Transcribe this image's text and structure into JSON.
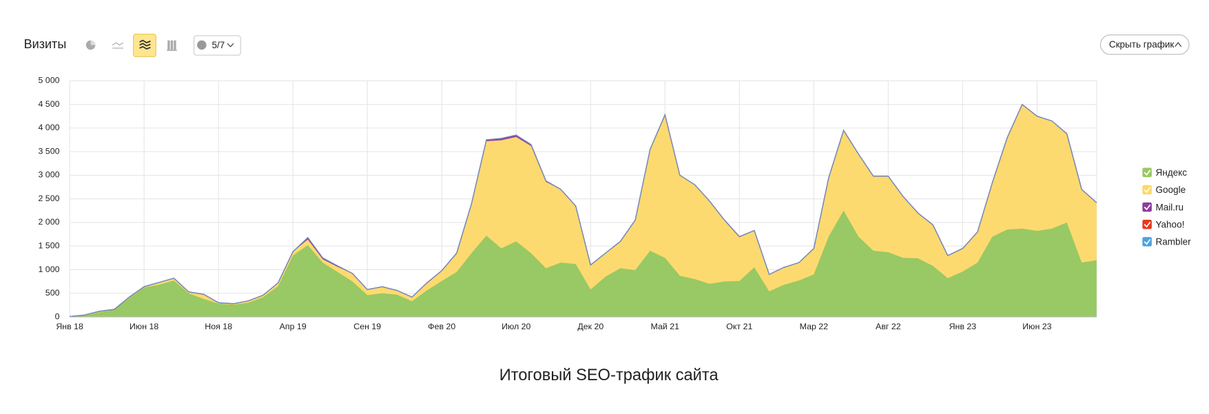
{
  "toolbar": {
    "title": "Визиты",
    "annotations": "5/7",
    "hide_button": "Скрыть график"
  },
  "caption": "Итоговый SEO-трафик сайта",
  "chart_data": {
    "type": "stacked_area",
    "categories": [
      "Янв 18",
      null,
      null,
      null,
      null,
      "Июн 18",
      null,
      null,
      null,
      null,
      "Ноя 18",
      null,
      null,
      null,
      null,
      "Апр 19",
      null,
      null,
      null,
      null,
      "Сен 19",
      null,
      null,
      null,
      null,
      "Фев 20",
      null,
      null,
      null,
      null,
      "Июл 20",
      null,
      null,
      null,
      null,
      "Дек 20",
      null,
      null,
      null,
      null,
      "Май 21",
      null,
      null,
      null,
      null,
      "Окт 21",
      null,
      null,
      null,
      null,
      "Мар 22",
      null,
      null,
      null,
      null,
      "Авг 22",
      null,
      null,
      null,
      null,
      "Янв 23",
      null,
      null,
      null,
      null,
      "Июн 23",
      null,
      null,
      null,
      null
    ],
    "series": [
      {
        "name": "Яндекс",
        "color": "#98c964",
        "values": [
          10,
          30,
          100,
          150,
          400,
          620,
          680,
          770,
          500,
          380,
          280,
          260,
          300,
          420,
          650,
          1300,
          1520,
          1150,
          950,
          750,
          460,
          500,
          470,
          330,
          560,
          760,
          950,
          1350,
          1720,
          1450,
          1600,
          1350,
          1030,
          1150,
          1120,
          580,
          850,
          1030,
          990,
          1400,
          1250,
          870,
          800,
          700,
          750,
          760,
          1050,
          540,
          680,
          770,
          900,
          1700,
          2250,
          1700,
          1400,
          1370,
          1250,
          1240,
          1080,
          820,
          960,
          1150,
          1700,
          1850,
          1870,
          1820,
          1870,
          2000,
          1150,
          1200
        ]
      },
      {
        "name": "Google",
        "color": "#fdd868",
        "values": [
          0,
          10,
          20,
          10,
          20,
          20,
          50,
          50,
          30,
          100,
          20,
          20,
          40,
          40,
          70,
          80,
          120,
          70,
          110,
          170,
          120,
          140,
          90,
          90,
          160,
          220,
          400,
          1050,
          2000,
          2290,
          2210,
          2270,
          1830,
          1550,
          1230,
          520,
          500,
          570,
          1060,
          2150,
          3010,
          2130,
          2000,
          1750,
          1300,
          940,
          780,
          360,
          370,
          380,
          550,
          1250,
          1700,
          1750,
          1580,
          1610,
          1300,
          960,
          870,
          480,
          490,
          650,
          1150,
          1950,
          2630,
          2430,
          2280,
          1880,
          1550,
          1220
        ]
      },
      {
        "name": "Mail.ru",
        "color": "#8e3a9e",
        "values": [
          0,
          0,
          0,
          0,
          0,
          0,
          0,
          0,
          0,
          0,
          0,
          0,
          0,
          0,
          0,
          0,
          40,
          30,
          20,
          0,
          0,
          0,
          0,
          0,
          0,
          0,
          0,
          0,
          30,
          40,
          40,
          30,
          20,
          0,
          0,
          0,
          0,
          0,
          0,
          0,
          20,
          0,
          0,
          0,
          0,
          0,
          0,
          0,
          0,
          0,
          0,
          0,
          0,
          0,
          0,
          0,
          0,
          0,
          0,
          0,
          0,
          0,
          0,
          0,
          0,
          0,
          0,
          0,
          0,
          0
        ]
      },
      {
        "name": "Yahoo!",
        "color": "#e8391e",
        "values": [
          0,
          0,
          0,
          0,
          0,
          0,
          0,
          0,
          0,
          0,
          0,
          0,
          0,
          0,
          0,
          0,
          0,
          0,
          0,
          0,
          0,
          0,
          0,
          0,
          0,
          0,
          0,
          0,
          0,
          0,
          0,
          0,
          0,
          0,
          0,
          0,
          0,
          0,
          0,
          0,
          0,
          0,
          0,
          0,
          0,
          0,
          0,
          0,
          0,
          0,
          0,
          0,
          0,
          0,
          0,
          0,
          0,
          0,
          0,
          0,
          0,
          0,
          0,
          0,
          0,
          0,
          0,
          0,
          0,
          0
        ]
      },
      {
        "name": "Rambler",
        "color": "#4aa3df",
        "values": [
          0,
          0,
          0,
          0,
          0,
          0,
          0,
          0,
          0,
          0,
          0,
          0,
          0,
          0,
          0,
          0,
          0,
          0,
          0,
          0,
          0,
          0,
          0,
          0,
          0,
          0,
          0,
          0,
          0,
          0,
          0,
          0,
          0,
          0,
          0,
          0,
          0,
          0,
          0,
          0,
          0,
          0,
          0,
          0,
          0,
          0,
          0,
          0,
          0,
          0,
          0,
          0,
          0,
          0,
          0,
          0,
          0,
          0,
          0,
          0,
          0,
          0,
          0,
          0,
          0,
          0,
          0,
          0,
          0,
          0
        ]
      }
    ],
    "ylim": [
      0,
      5000
    ],
    "yticks": [
      0,
      500,
      {
        "value": 1000,
        "label": "1 000"
      },
      {
        "value": 1500,
        "label": "1 500"
      },
      {
        "value": 2000,
        "label": "2 000"
      },
      {
        "value": 2500,
        "label": "2 500"
      },
      {
        "value": 3000,
        "label": "3 000"
      },
      {
        "value": 3500,
        "label": "3 500"
      },
      {
        "value": 4000,
        "label": "4 000"
      },
      {
        "value": 4500,
        "label": "4 500"
      },
      {
        "value": 5000,
        "label": "5 000"
      }
    ],
    "grid": true,
    "legend": "right"
  }
}
